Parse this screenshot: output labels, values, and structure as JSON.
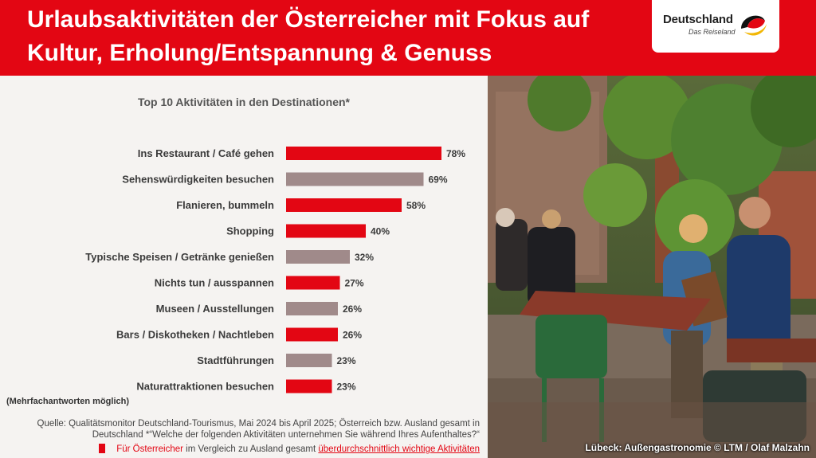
{
  "header": {
    "title_line1": "Urlaubsaktivitäten der Österreicher mit Fokus auf",
    "title_line2": "Kultur, Erholung/Entspannung & Genuss"
  },
  "logo": {
    "name": "Deutschland",
    "tagline": "Das Reiseland"
  },
  "colors": {
    "accent": "#e30613",
    "neutral_bar": "#a08a8a"
  },
  "chart_data": {
    "type": "bar",
    "orientation": "horizontal",
    "title": "Top 10 Aktivitäten in den Destinationen*",
    "categories": [
      "Ins Restaurant / Café gehen",
      "Sehenswürdigkeiten besuchen",
      "Flanieren, bummeln",
      "Shopping",
      "Typische Speisen / Getränke genießen",
      "Nichts tun / ausspannen",
      "Museen / Ausstellungen",
      "Bars / Diskotheken / Nachtleben",
      "Stadtführungen",
      "Naturattraktionen besuchen"
    ],
    "values": [
      78,
      69,
      58,
      40,
      32,
      27,
      26,
      26,
      23,
      23
    ],
    "value_labels": [
      "78%",
      "69%",
      "58%",
      "40%",
      "32%",
      "27%",
      "26%",
      "26%",
      "23%",
      "23%"
    ],
    "highlighted": [
      true,
      false,
      true,
      true,
      false,
      true,
      false,
      true,
      false,
      true
    ],
    "unit": "%",
    "xlim": [
      0,
      100
    ]
  },
  "footnotes": {
    "multiple_answers": "(Mehrfachantworten möglich)",
    "source_line1": "Quelle: Qualitätsmonitor Deutschland-Tourismus, Mai 2024 bis April 2025; Österreich bzw. Ausland gesamt in",
    "source_line2": "Deutschland *“Welche der folgenden Aktivitäten unternehmen Sie während Ihres Aufenthaltes?“",
    "legend_part1": "Für Österreicher",
    "legend_part2": " im Vergleich zu Ausland gesamt ",
    "legend_part3": "überdurchschnittlich wichtige Aktivitäten"
  },
  "photo": {
    "caption": "Lübeck: Außengastronomie © LTM / Olaf Malzahn"
  }
}
